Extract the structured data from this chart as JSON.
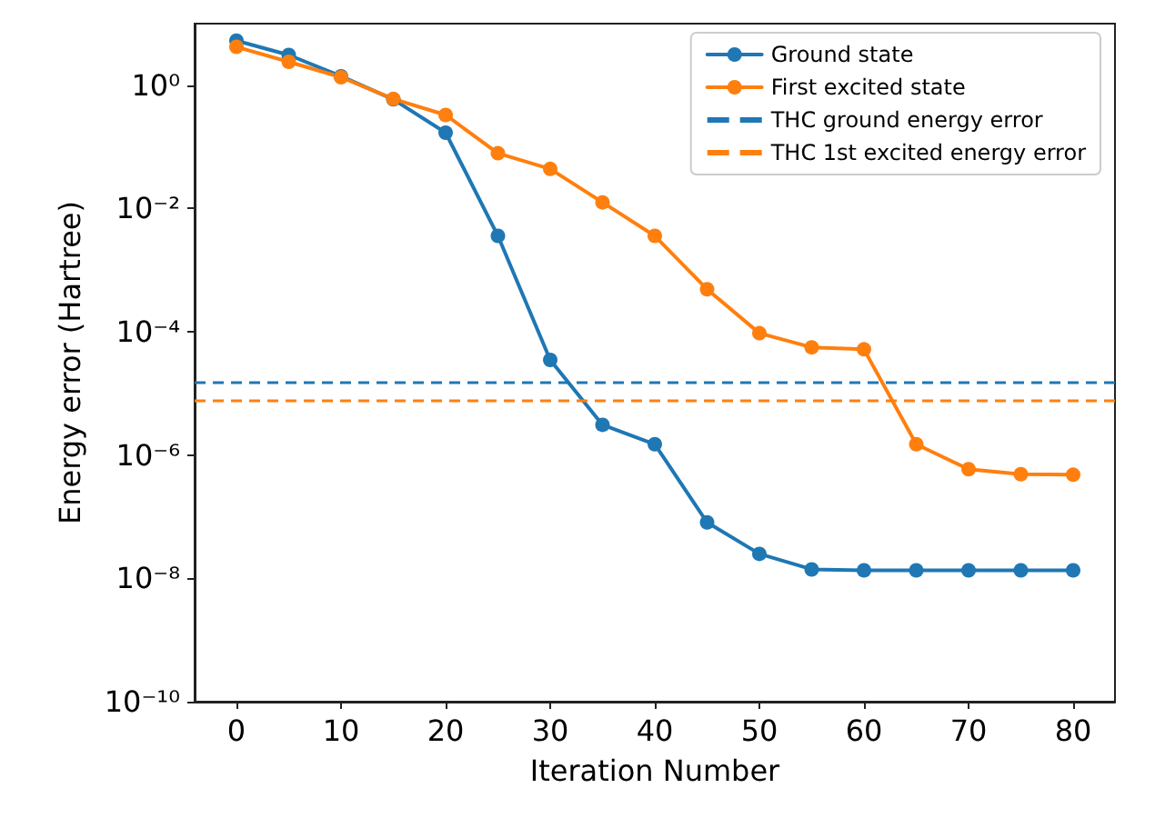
{
  "chart_data": {
    "type": "line",
    "xlabel": "Iteration Number",
    "ylabel": "Energy error (Hartree)",
    "x": [
      0,
      5,
      10,
      15,
      20,
      25,
      30,
      35,
      40,
      45,
      50,
      55,
      60,
      65,
      70,
      75,
      80
    ],
    "series": [
      {
        "name": "Ground state",
        "color": "#1f77b4",
        "values": [
          5.3,
          3.1,
          1.4,
          0.59,
          0.17,
          0.0036,
          3.5e-05,
          3.1e-06,
          1.5e-06,
          8.1e-08,
          2.5e-08,
          1.4e-08,
          1.35e-08,
          1.35e-08,
          1.35e-08,
          1.35e-08,
          1.35e-08
        ]
      },
      {
        "name": "First excited state",
        "color": "#ff7f0e",
        "values": [
          4.2,
          2.4,
          1.35,
          0.6,
          0.33,
          0.079,
          0.044,
          0.0126,
          0.0036,
          0.00049,
          9.5e-05,
          5.6e-05,
          5.2e-05,
          1.5e-06,
          5.9e-07,
          4.9e-07,
          4.8e-07
        ]
      }
    ],
    "ref_lines": [
      {
        "axis": "y",
        "value": 1.5e-05,
        "label": "THC ground energy error",
        "color": "#1f77b4",
        "line_style": "dashed"
      },
      {
        "axis": "y",
        "value": 7.6e-06,
        "label": "THC 1st excited energy error",
        "color": "#ff7f0e",
        "line_style": "dashed"
      }
    ],
    "log": "y",
    "xlim": [
      -4,
      84
    ],
    "xticks": [
      0,
      10,
      20,
      30,
      40,
      50,
      60,
      70,
      80
    ],
    "ylim": [
      1e-10,
      10
    ],
    "yticks": [
      {
        "value": 1,
        "label": "10⁰"
      },
      {
        "value": 0.01,
        "label": "10⁻²"
      },
      {
        "value": 0.0001,
        "label": "10⁻⁴"
      },
      {
        "value": 1e-06,
        "label": "10⁻⁶"
      },
      {
        "value": 1e-08,
        "label": "10⁻⁸"
      },
      {
        "value": 1e-10,
        "label": "10⁻¹⁰"
      }
    ],
    "grid": false,
    "legend": "top right",
    "marker": "circle",
    "line_style": "solid"
  }
}
